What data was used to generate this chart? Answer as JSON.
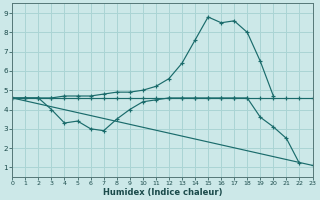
{
  "xlabel": "Humidex (Indice chaleur)",
  "bg_color": "#cce8e8",
  "grid_color": "#aad4d4",
  "line_color": "#1a6b6b",
  "xmin": 0,
  "xmax": 23,
  "ymin": 0.5,
  "ymax": 9.5,
  "lines": [
    {
      "x": [
        0,
        1,
        2,
        3,
        4,
        5,
        6,
        7,
        8,
        9,
        10,
        11,
        12,
        13,
        14,
        15,
        16,
        17,
        18,
        19,
        20,
        21,
        22,
        23
      ],
      "y": [
        4.6,
        4.6,
        4.6,
        4.6,
        4.6,
        4.6,
        4.6,
        4.6,
        4.6,
        4.6,
        4.6,
        4.6,
        4.6,
        4.6,
        4.6,
        4.6,
        4.6,
        4.6,
        4.6,
        4.6,
        4.6,
        4.6,
        4.6,
        4.6
      ]
    },
    {
      "x": [
        0,
        1,
        2,
        3,
        4,
        5,
        6,
        7,
        8,
        9,
        10,
        11,
        12,
        13,
        14,
        15,
        16,
        17,
        18,
        19,
        20
      ],
      "y": [
        4.6,
        4.6,
        4.6,
        4.6,
        4.7,
        4.7,
        4.7,
        4.8,
        4.9,
        4.9,
        5.0,
        5.2,
        5.6,
        6.4,
        7.6,
        8.8,
        8.5,
        8.6,
        8.0,
        6.5,
        4.7
      ]
    },
    {
      "x": [
        0,
        1,
        2,
        3,
        4,
        5,
        6,
        7,
        8,
        9,
        10,
        11,
        12,
        13,
        14,
        15,
        16,
        17,
        18,
        19,
        20,
        21,
        22
      ],
      "y": [
        4.6,
        4.6,
        4.6,
        4.0,
        3.3,
        3.4,
        3.0,
        2.9,
        3.5,
        4.0,
        4.4,
        4.5,
        4.6,
        4.6,
        4.6,
        4.6,
        4.6,
        4.6,
        4.6,
        3.6,
        3.1,
        2.5,
        1.2
      ]
    },
    {
      "x": [
        0,
        23
      ],
      "y": [
        4.6,
        1.1
      ]
    }
  ]
}
